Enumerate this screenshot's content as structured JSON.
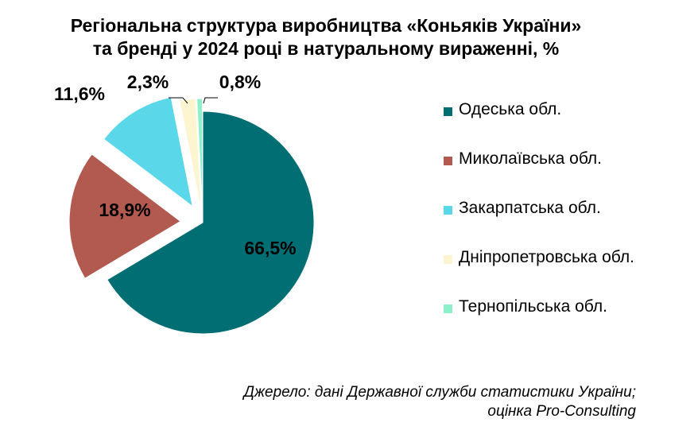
{
  "title_line1": "Регіональна структура виробництва «Коньяків України»",
  "title_line2": "та бренді у 2024 році в натуральному вираженні, %",
  "source_line1": "Джерело: дані Державної служби статистики України;",
  "source_line2": "оцінка Pro-Consulting",
  "chart_data": {
    "type": "pie",
    "title": "Регіональна структура виробництва «Коньяків України» та бренді у 2024 році в натуральному вираженні, %",
    "legend_position": "right",
    "slices": [
      {
        "name": "Одеська обл.",
        "value": 66.5,
        "label": "66,5%",
        "color": "#006e73"
      },
      {
        "name": "Миколаївська обл.",
        "value": 18.9,
        "label": "18,9%",
        "color": "#b35a50"
      },
      {
        "name": "Закарпатська обл.",
        "value": 11.6,
        "label": "11,6%",
        "color": "#5ad8ea"
      },
      {
        "name": "Дніпропетровська обл.",
        "value": 2.3,
        "label": "2,3%",
        "color": "#fdf5cf"
      },
      {
        "name": "Тернопільська обл.",
        "value": 0.8,
        "label": "0,8%",
        "color": "#8ef0c8"
      }
    ]
  }
}
